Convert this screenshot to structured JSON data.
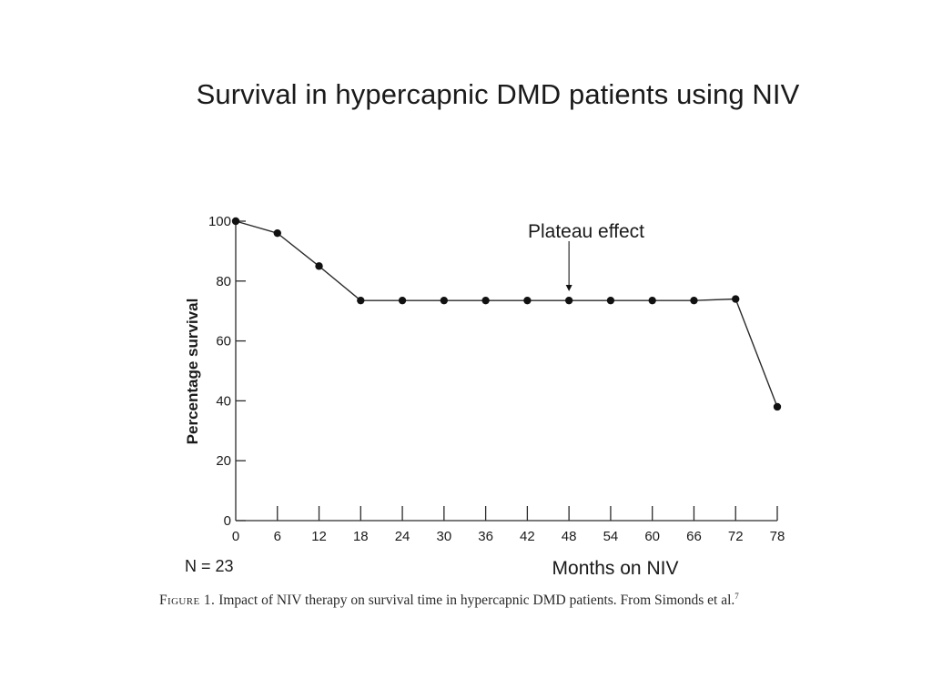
{
  "slide": {
    "title": "Survival in hypercapnic DMD patients using NIV"
  },
  "chart_data": {
    "type": "line",
    "x": [
      0,
      6,
      12,
      18,
      24,
      30,
      36,
      42,
      48,
      54,
      60,
      66,
      72,
      78
    ],
    "series": [
      {
        "values": [
          100,
          96,
          85,
          73.5,
          73.5,
          73.5,
          73.5,
          73.5,
          73.5,
          73.5,
          73.5,
          73.5,
          74,
          38
        ]
      }
    ],
    "xticks": [
      "0",
      "6",
      "12",
      "18",
      "24",
      "30",
      "36",
      "42",
      "48",
      "54",
      "60",
      "66",
      "72",
      "78"
    ],
    "yticks": [
      "0",
      "20",
      "40",
      "60",
      "80",
      "100"
    ],
    "xlim": [
      0,
      78
    ],
    "ylim": [
      0,
      100
    ],
    "xlabel": "Months on NIV",
    "ylabel": "Percentage survival",
    "annotation": {
      "text": "Plateau effect",
      "x": 48,
      "y": 76
    },
    "sample_note": "N = 23",
    "grid": false,
    "line_color": "#2a2a2a"
  },
  "caption": {
    "lead": "Figure 1.",
    "text": " Impact of NIV therapy on survival time in hypercapnic DMD patients. From Simonds et al.",
    "ref": "7"
  }
}
